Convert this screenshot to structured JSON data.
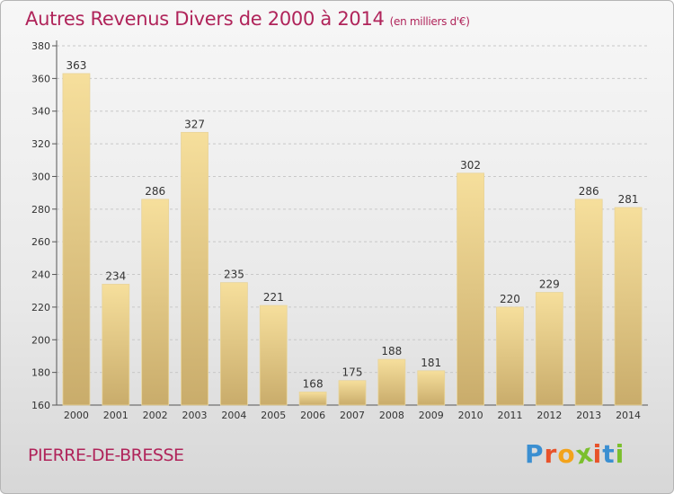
{
  "title": "Autres Revenus Divers de 2000 à 2014",
  "subtitle": "(en milliers d'€)",
  "location": "PIERRE-DE-BRESSE",
  "logo": {
    "letters": [
      "P",
      "r",
      "o",
      "x",
      "i",
      "t",
      "i"
    ],
    "colors": [
      "#3b8fd1",
      "#e8522a",
      "#f3a31b",
      "#7bbf2d",
      "#e8522a",
      "#3b8fd1",
      "#7bbf2d"
    ]
  },
  "colors": {
    "bar_top": "#f6df9c",
    "bar_bottom": "#c9ac6b",
    "title": "#b0245a"
  },
  "chart_data": {
    "type": "bar",
    "categories": [
      "2000",
      "2001",
      "2002",
      "2003",
      "2004",
      "2005",
      "2006",
      "2007",
      "2008",
      "2009",
      "2010",
      "2011",
      "2012",
      "2013",
      "2014"
    ],
    "values": [
      363,
      234,
      286,
      327,
      235,
      221,
      168,
      175,
      188,
      181,
      302,
      220,
      229,
      286,
      281
    ],
    "ylim": [
      160,
      380
    ],
    "yticks": [
      160,
      180,
      200,
      220,
      240,
      260,
      280,
      300,
      320,
      340,
      360,
      380
    ],
    "grid": true
  }
}
